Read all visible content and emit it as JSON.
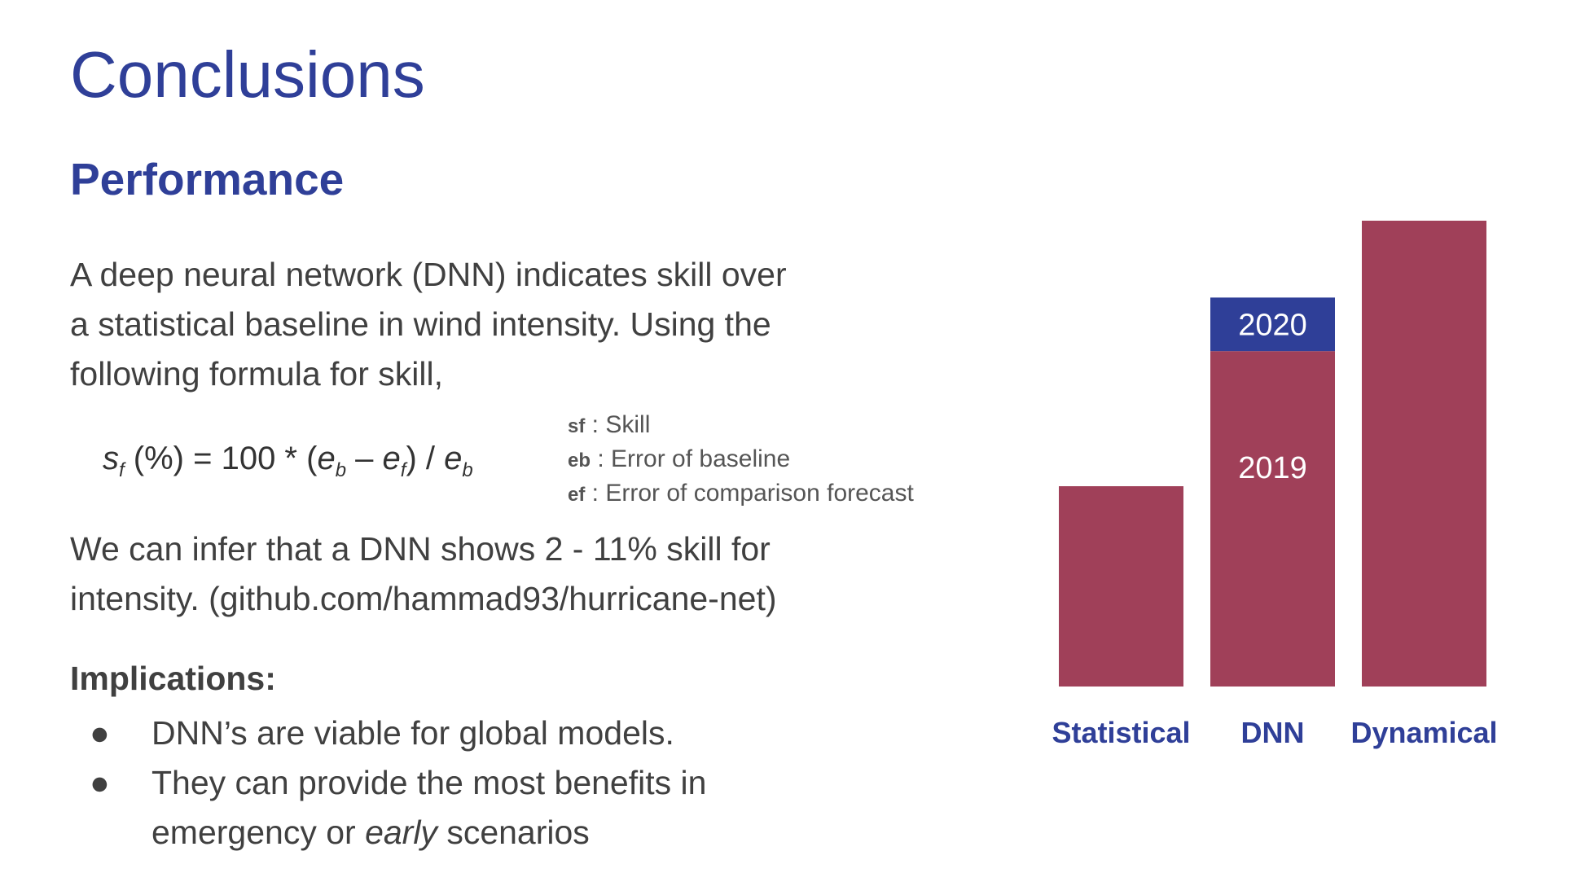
{
  "slide": {
    "title": "Conclusions",
    "section_heading": "Performance",
    "intro_lines": [
      "A deep neural network (DNN) indicates skill over",
      "a statistical baseline in wind intensity. Using the",
      "following formula for skill,"
    ],
    "formula": {
      "s": "s",
      "s_sub": "f",
      "mid1": " (%) = 100 * (",
      "e1": "e",
      "e1_sub": "b",
      "minus": " – ",
      "e2": "e",
      "e2_sub": "f",
      "mid2": ") / ",
      "e3": "e",
      "e3_sub": "b"
    },
    "definitions": [
      {
        "symbol": "sf",
        "sep": " : ",
        "text": "Skill"
      },
      {
        "symbol": "eb",
        "sep": " : ",
        "text": "Error of baseline"
      },
      {
        "symbol": "ef",
        "sep": " :  ",
        "text": "Error of comparison forecast"
      }
    ],
    "infer_lines": [
      "We can infer that a DNN shows 2 - 11% skill for",
      "intensity. (github.com/hammad93/hurricane-net)"
    ],
    "implications_heading": "Implications:",
    "bullets": {
      "marker": "●",
      "item1": "DNN’s are viable for global models.",
      "item2_line1": "They can provide the most benefits in",
      "item2_pre": "emergency or ",
      "item2_em": "early",
      "item2_post": " scenarios"
    }
  },
  "colors": {
    "title": "#2f3f98",
    "bar_red": "#a04059",
    "bar_blue": "#2f3f98",
    "bar_text": "#ffffff",
    "body_text": "#404040"
  },
  "chart_data": {
    "type": "bar",
    "stacked": true,
    "categories": [
      "Statistical",
      "DNN",
      "Dynamical"
    ],
    "series": [
      {
        "name": "2019",
        "values": [
          43,
          72,
          100
        ],
        "color": "#a04059"
      },
      {
        "name": "2020",
        "values": [
          0,
          11.5,
          0
        ],
        "color": "#2f3f98"
      }
    ],
    "segment_labels": [
      {
        "category": "DNN",
        "series": "2019",
        "text": "2019"
      },
      {
        "category": "DNN",
        "series": "2020",
        "text": "2020"
      }
    ],
    "ylim": [
      0,
      100
    ],
    "axes_visible": false,
    "grid": false,
    "title": "",
    "xlabel": "",
    "ylabel": ""
  }
}
